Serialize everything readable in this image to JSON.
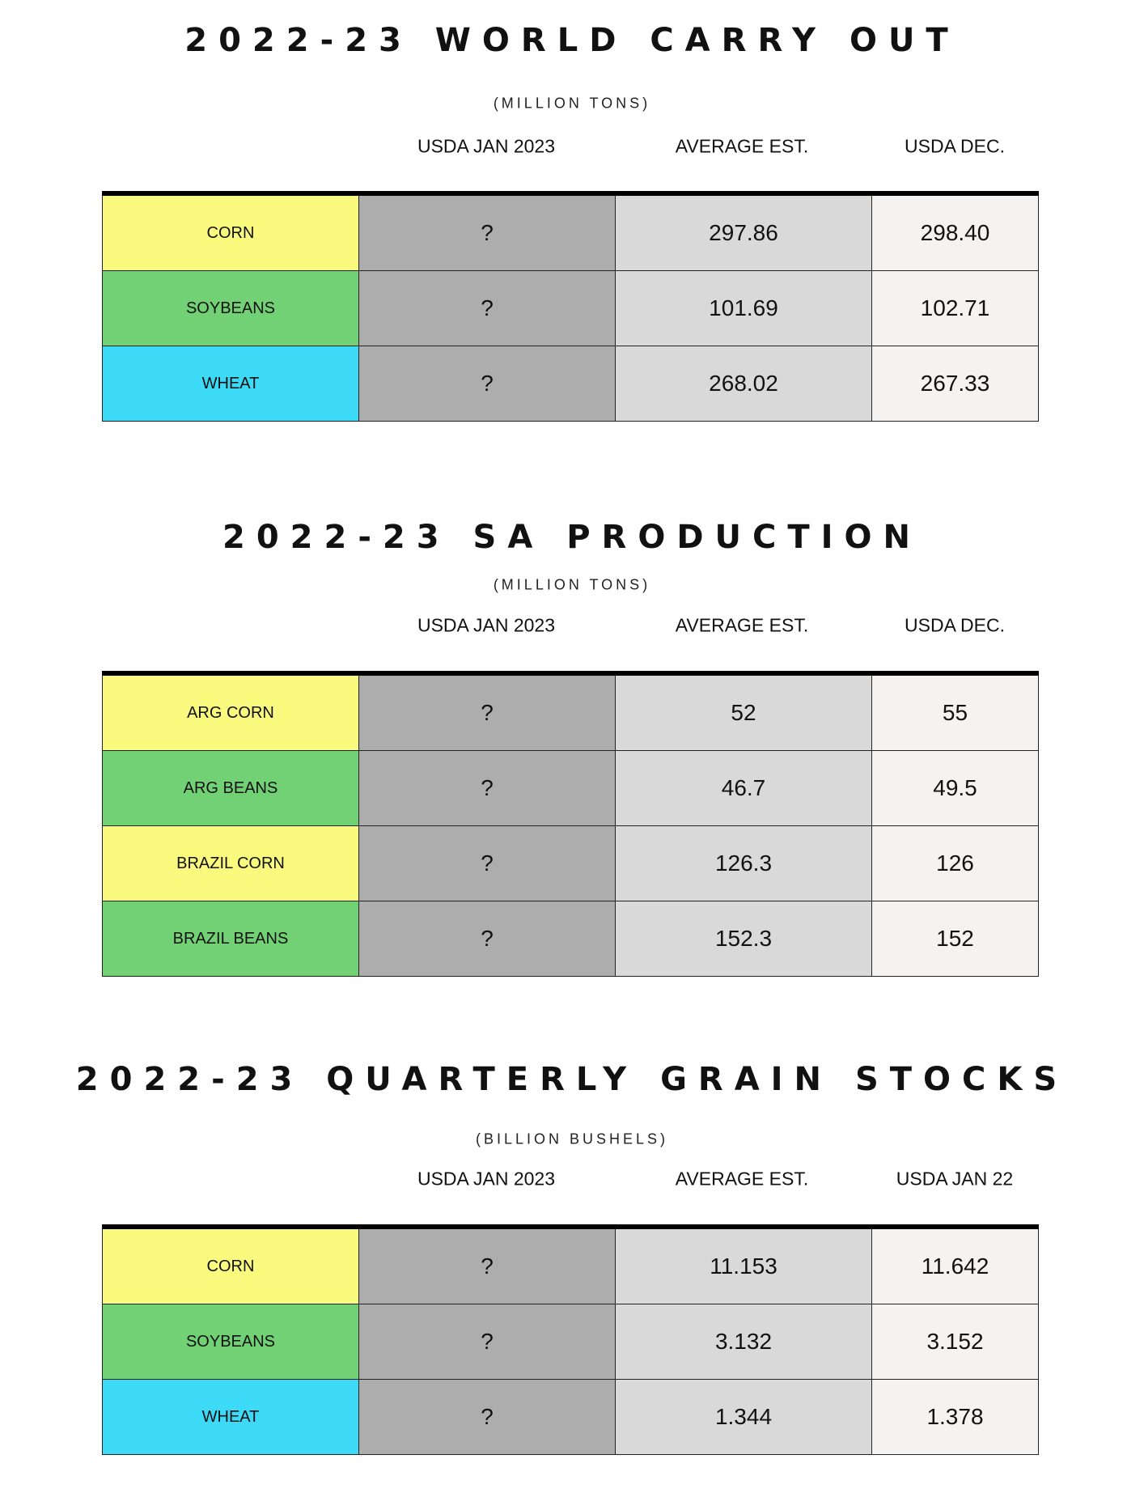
{
  "colors": {
    "corn": "#fafa7e",
    "soybeans": "#72d174",
    "wheat": "#3ddaf7",
    "usda_jan": "#adadad",
    "average": "#d9d9d9",
    "usda_dec": "#f5f3f2"
  },
  "sections": [
    {
      "title": "2022-23 WORLD CARRY OUT",
      "subtitle": "(MILLION TONS)",
      "headers": [
        "USDA JAN 2023",
        "AVERAGE EST.",
        "USDA DEC."
      ],
      "rows": [
        {
          "label": "CORN",
          "color": "#fafa7e",
          "usda_jan": "?",
          "average": "297.86",
          "usda_prev": "298.40"
        },
        {
          "label": "SOYBEANS",
          "color": "#72d174",
          "usda_jan": "?",
          "average": "101.69",
          "usda_prev": "102.71"
        },
        {
          "label": "WHEAT",
          "color": "#3ddaf7",
          "usda_jan": "?",
          "average": "268.02",
          "usda_prev": "267.33"
        }
      ]
    },
    {
      "title": "2022-23 SA PRODUCTION",
      "subtitle": "(MILLION TONS)",
      "headers": [
        "USDA JAN 2023",
        "AVERAGE EST.",
        "USDA DEC."
      ],
      "rows": [
        {
          "label": "ARG CORN",
          "color": "#fafa7e",
          "usda_jan": "?",
          "average": "52",
          "usda_prev": "55"
        },
        {
          "label": "ARG BEANS",
          "color": "#72d174",
          "usda_jan": "?",
          "average": "46.7",
          "usda_prev": "49.5"
        },
        {
          "label": "BRAZIL CORN",
          "color": "#fafa7e",
          "usda_jan": "?",
          "average": "126.3",
          "usda_prev": "126"
        },
        {
          "label": "BRAZIL BEANS",
          "color": "#72d174",
          "usda_jan": "?",
          "average": "152.3",
          "usda_prev": "152"
        }
      ]
    },
    {
      "title": "2022-23 QUARTERLY GRAIN STOCKS",
      "subtitle": "(BILLION BUSHELS)",
      "headers": [
        "USDA JAN 2023",
        "AVERAGE EST.",
        "USDA JAN 22"
      ],
      "rows": [
        {
          "label": "CORN",
          "color": "#fafa7e",
          "usda_jan": "?",
          "average": "11.153",
          "usda_prev": "11.642"
        },
        {
          "label": "SOYBEANS",
          "color": "#72d174",
          "usda_jan": "?",
          "average": "3.132",
          "usda_prev": "3.152"
        },
        {
          "label": "WHEAT",
          "color": "#3ddaf7",
          "usda_jan": "?",
          "average": "1.344",
          "usda_prev": "1.378"
        }
      ]
    }
  ]
}
